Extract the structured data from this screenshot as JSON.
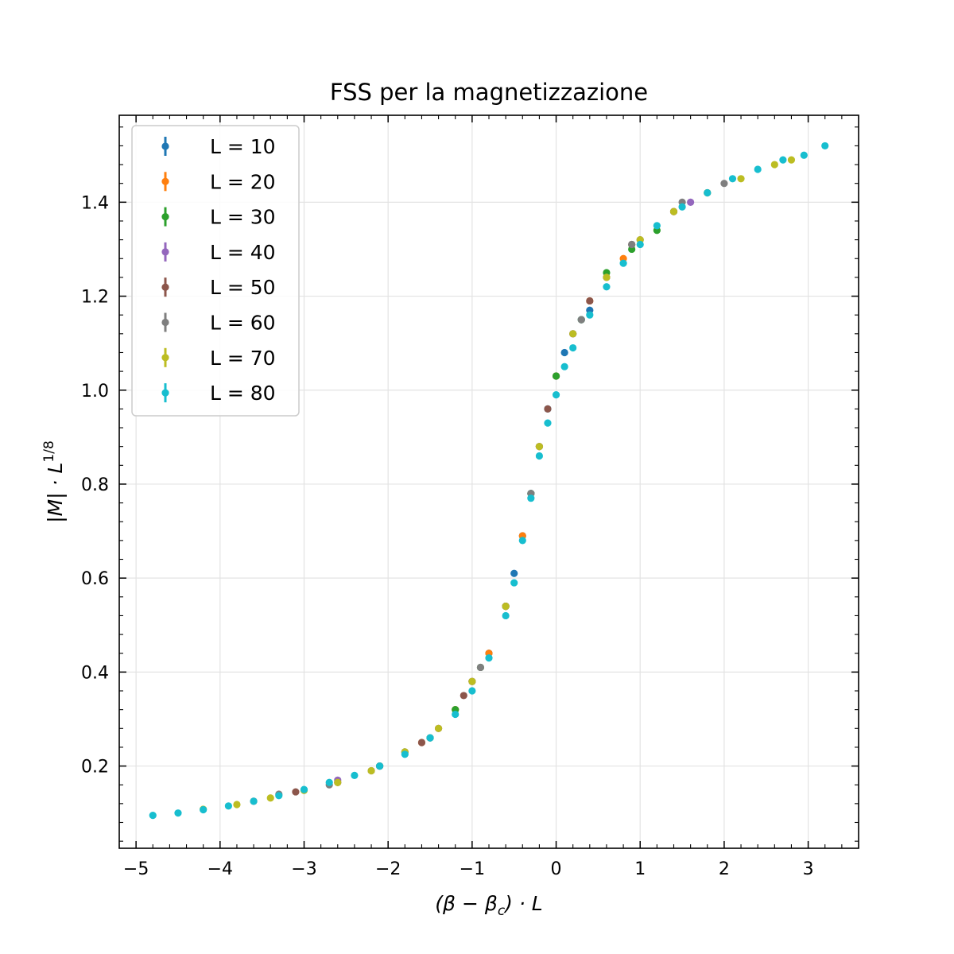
{
  "chart_data": {
    "type": "scatter",
    "title": "FSS per la magnetizzazione",
    "xlabel": "(β − β",
    "xlabel_sub": "c",
    "xlabel_tail": ") · L",
    "ylabel": "|M| · L",
    "ylabel_sup": "1/8",
    "xlim": [
      -5.2,
      3.6
    ],
    "ylim": [
      0.025,
      1.585
    ],
    "grid": true,
    "legend_position": "upper-left",
    "x_ticks": [
      {
        "value": -5,
        "label": "−5"
      },
      {
        "value": -4,
        "label": "−4"
      },
      {
        "value": -3,
        "label": "−3"
      },
      {
        "value": -2,
        "label": "−2"
      },
      {
        "value": -1,
        "label": "−1"
      },
      {
        "value": 0,
        "label": "0"
      },
      {
        "value": 1,
        "label": "1"
      },
      {
        "value": 2,
        "label": "2"
      },
      {
        "value": 3,
        "label": "3"
      }
    ],
    "y_ticks": [
      {
        "value": 0.2,
        "label": "0.2"
      },
      {
        "value": 0.4,
        "label": "0.4"
      },
      {
        "value": 0.6,
        "label": "0.6"
      },
      {
        "value": 0.8,
        "label": "0.8"
      },
      {
        "value": 1.0,
        "label": "1.0"
      },
      {
        "value": 1.2,
        "label": "1.2"
      },
      {
        "value": 1.4,
        "label": "1.4"
      }
    ],
    "series": [
      {
        "name": "L = 10",
        "color": "#1f77b4",
        "x": [
          -1.0,
          -0.8,
          -0.6,
          -0.5,
          -0.4,
          -0.3,
          -0.2,
          -0.1,
          0.0,
          0.1,
          0.2,
          0.3,
          0.4
        ],
        "y": [
          0.38,
          0.44,
          0.54,
          0.61,
          0.69,
          0.78,
          0.88,
          0.96,
          1.03,
          1.08,
          1.12,
          1.15,
          1.17
        ]
      },
      {
        "name": "L = 20",
        "color": "#ff7f0e",
        "x": [
          -1.6,
          -1.4,
          -1.2,
          -1.0,
          -0.8,
          -0.6,
          -0.4,
          -0.2,
          0.0,
          0.2,
          0.4,
          0.6,
          0.8
        ],
        "y": [
          0.25,
          0.28,
          0.32,
          0.38,
          0.44,
          0.54,
          0.69,
          0.88,
          1.03,
          1.12,
          1.19,
          1.24,
          1.28
        ]
      },
      {
        "name": "L = 30",
        "color": "#2ca02c",
        "x": [
          -2.1,
          -1.8,
          -1.5,
          -1.2,
          -0.9,
          -0.6,
          -0.3,
          0.0,
          0.3,
          0.6,
          0.9,
          1.2
        ],
        "y": [
          0.2,
          0.23,
          0.26,
          0.32,
          0.41,
          0.54,
          0.78,
          1.03,
          1.15,
          1.25,
          1.3,
          1.34
        ]
      },
      {
        "name": "L = 40",
        "color": "#9467bd",
        "x": [
          -2.6,
          -2.2,
          -1.8,
          -1.4,
          -1.0,
          -0.6,
          -0.2,
          0.2,
          0.6,
          1.0,
          1.4,
          1.6
        ],
        "y": [
          0.17,
          0.19,
          0.23,
          0.28,
          0.38,
          0.54,
          0.88,
          1.12,
          1.24,
          1.32,
          1.38,
          1.4
        ]
      },
      {
        "name": "L = 50",
        "color": "#8c564b",
        "x": [
          -3.6,
          -3.1,
          -2.6,
          -2.1,
          -1.6,
          -1.1,
          -0.6,
          -0.1,
          0.4,
          0.9,
          1.4,
          1.8
        ],
        "y": [
          0.125,
          0.145,
          0.165,
          0.2,
          0.25,
          0.35,
          0.54,
          0.96,
          1.19,
          1.31,
          1.38,
          1.42
        ]
      },
      {
        "name": "L = 60",
        "color": "#7f7f7f",
        "x": [
          -3.3,
          -2.7,
          -2.1,
          -1.5,
          -0.9,
          -0.3,
          0.3,
          0.9,
          1.5,
          2.0
        ],
        "y": [
          0.14,
          0.16,
          0.2,
          0.26,
          0.41,
          0.78,
          1.15,
          1.31,
          1.4,
          1.44
        ]
      },
      {
        "name": "L = 70",
        "color": "#bcbd22",
        "x": [
          -4.2,
          -3.8,
          -3.4,
          -3.0,
          -2.6,
          -2.2,
          -1.8,
          -1.4,
          -1.0,
          -0.6,
          -0.2,
          0.2,
          0.6,
          1.0,
          1.4,
          1.8,
          2.2,
          2.6,
          2.8
        ],
        "y": [
          0.108,
          0.118,
          0.132,
          0.148,
          0.165,
          0.19,
          0.23,
          0.28,
          0.38,
          0.54,
          0.88,
          1.12,
          1.24,
          1.32,
          1.38,
          1.42,
          1.45,
          1.48,
          1.49
        ]
      },
      {
        "name": "L = 80",
        "color": "#17becf",
        "x": [
          -4.8,
          -4.5,
          -4.2,
          -3.9,
          -3.6,
          -3.3,
          -3.0,
          -2.7,
          -2.4,
          -2.1,
          -1.8,
          -1.5,
          -1.2,
          -1.0,
          -0.8,
          -0.6,
          -0.5,
          -0.4,
          -0.3,
          -0.2,
          -0.1,
          0.0,
          0.1,
          0.2,
          0.4,
          0.6,
          0.8,
          1.0,
          1.2,
          1.5,
          1.8,
          2.1,
          2.4,
          2.7,
          2.95,
          3.2
        ],
        "y": [
          0.095,
          0.1,
          0.107,
          0.115,
          0.125,
          0.137,
          0.15,
          0.165,
          0.18,
          0.2,
          0.225,
          0.26,
          0.31,
          0.36,
          0.43,
          0.52,
          0.59,
          0.68,
          0.77,
          0.86,
          0.93,
          0.99,
          1.05,
          1.09,
          1.16,
          1.22,
          1.27,
          1.31,
          1.35,
          1.39,
          1.42,
          1.45,
          1.47,
          1.49,
          1.5,
          1.52
        ]
      }
    ]
  }
}
